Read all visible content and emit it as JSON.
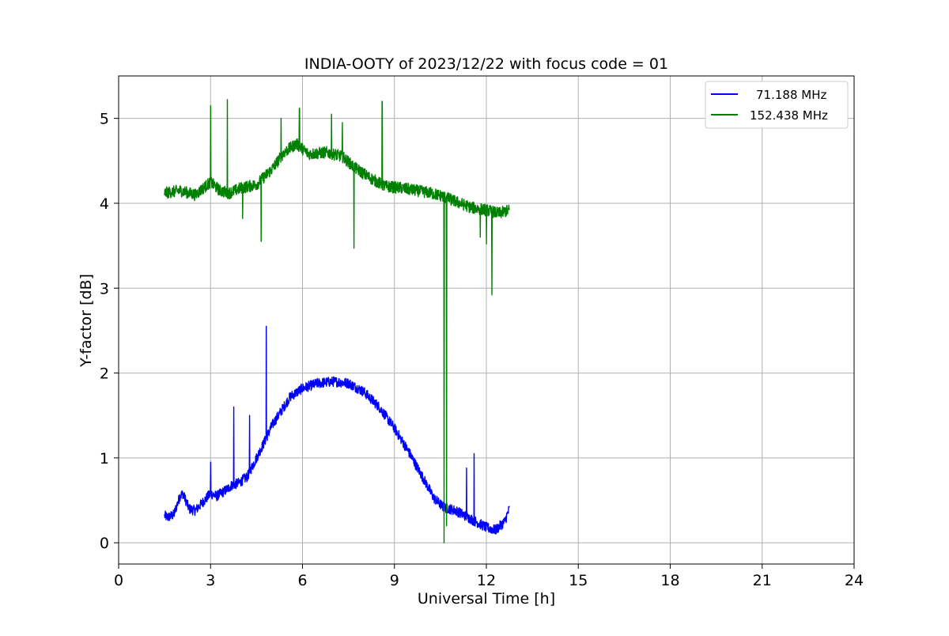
{
  "chart_data": {
    "type": "line",
    "title": "INDIA-OOTY of 2023/12/22 with focus code = 01",
    "xlabel": "Universal Time [h]",
    "ylabel": "Y-factor [dB]",
    "xlim": [
      0,
      24
    ],
    "ylim": [
      -0.25,
      5.5
    ],
    "xticks": [
      0,
      3,
      6,
      9,
      12,
      15,
      18,
      21,
      24
    ],
    "yticks": [
      0,
      1,
      2,
      3,
      4,
      5
    ],
    "xtick_labels": [
      "0",
      "3",
      "6",
      "9",
      "12",
      "15",
      "18",
      "21",
      "24"
    ],
    "ytick_labels": [
      "0",
      "1",
      "2",
      "3",
      "4",
      "5"
    ],
    "grid": true,
    "legend_position": "top-right",
    "series": [
      {
        "name": "71.188 MHz",
        "color": "#0000ff",
        "x": [
          1.5,
          1.6,
          1.8,
          2.0,
          2.1,
          2.3,
          2.5,
          2.8,
          3.0,
          3.2,
          3.5,
          3.7,
          3.9,
          4.2,
          4.5,
          4.8,
          5.0,
          5.3,
          5.6,
          6.0,
          6.5,
          7.0,
          7.5,
          8.0,
          8.5,
          9.0,
          9.5,
          10.0,
          10.3,
          10.6,
          11.0,
          11.5,
          12.0,
          12.3,
          12.6,
          12.75
        ],
        "y": [
          0.32,
          0.3,
          0.33,
          0.55,
          0.58,
          0.4,
          0.38,
          0.5,
          0.58,
          0.55,
          0.62,
          0.68,
          0.7,
          0.78,
          1.0,
          1.22,
          1.38,
          1.55,
          1.72,
          1.82,
          1.88,
          1.9,
          1.88,
          1.78,
          1.6,
          1.35,
          1.05,
          0.72,
          0.52,
          0.42,
          0.38,
          0.28,
          0.18,
          0.15,
          0.25,
          0.4
        ]
      },
      {
        "name": "152.438 MHz",
        "color": "#008000",
        "x": [
          1.5,
          2.0,
          2.5,
          3.0,
          3.3,
          3.6,
          4.0,
          4.5,
          5.0,
          5.4,
          5.8,
          6.2,
          6.8,
          7.3,
          7.7,
          8.2,
          8.7,
          9.2,
          9.7,
          10.2,
          10.6,
          11.0,
          11.5,
          12.0,
          12.4,
          12.75
        ],
        "y": [
          4.12,
          4.15,
          4.1,
          4.25,
          4.15,
          4.12,
          4.18,
          4.22,
          4.4,
          4.6,
          4.7,
          4.58,
          4.6,
          4.55,
          4.42,
          4.3,
          4.2,
          4.18,
          4.15,
          4.12,
          4.08,
          4.02,
          3.95,
          3.92,
          3.88,
          3.92
        ]
      }
    ],
    "spikes": [
      {
        "series": 0,
        "x": 3.76,
        "y": 1.6
      },
      {
        "series": 0,
        "x": 4.27,
        "y": 1.5
      },
      {
        "series": 0,
        "x": 4.82,
        "y": 2.55
      },
      {
        "series": 0,
        "x": 11.6,
        "y": 1.05
      },
      {
        "series": 0,
        "x": 11.35,
        "y": 0.88
      },
      {
        "series": 0,
        "x": 3.0,
        "y": 0.95
      },
      {
        "series": 1,
        "x": 3.0,
        "y": 5.15
      },
      {
        "series": 1,
        "x": 3.55,
        "y": 5.22
      },
      {
        "series": 1,
        "x": 5.3,
        "y": 5.0
      },
      {
        "series": 1,
        "x": 5.9,
        "y": 5.12
      },
      {
        "series": 1,
        "x": 6.95,
        "y": 5.05
      },
      {
        "series": 1,
        "x": 7.3,
        "y": 4.95
      },
      {
        "series": 1,
        "x": 8.6,
        "y": 5.2
      },
      {
        "series": 1,
        "x": 4.65,
        "y": 3.55
      },
      {
        "series": 1,
        "x": 7.68,
        "y": 3.47
      },
      {
        "series": 1,
        "x": 10.62,
        "y": 0.0
      },
      {
        "series": 1,
        "x": 10.7,
        "y": 0.2
      },
      {
        "series": 1,
        "x": 12.0,
        "y": 3.52
      },
      {
        "series": 1,
        "x": 12.18,
        "y": 2.92
      },
      {
        "series": 1,
        "x": 11.8,
        "y": 3.6
      },
      {
        "series": 1,
        "x": 4.05,
        "y": 3.82
      }
    ]
  }
}
